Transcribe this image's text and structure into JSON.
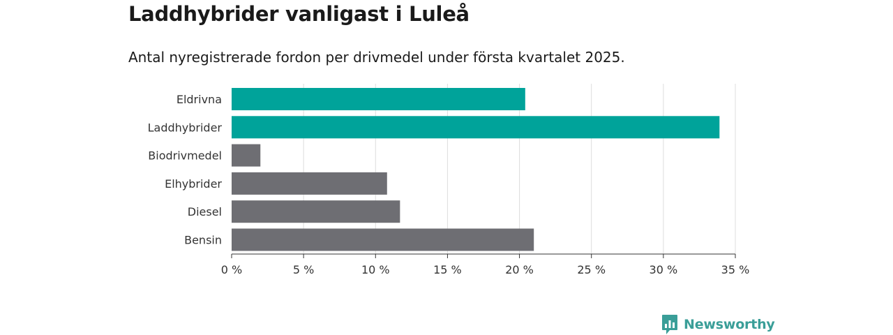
{
  "title": "Laddhybrider vanligast i Luleå",
  "subtitle": "Antal nyregistrerade fordon per drivmedel under första kvartalet 2025.",
  "brand": {
    "name": "Newsworthy",
    "color": "#3a9e98"
  },
  "colors": {
    "highlight": "#00a39a",
    "default": "#6e6e73",
    "grid": "#dddddd",
    "axis": "#333333"
  },
  "chart_data": {
    "type": "bar",
    "orientation": "horizontal",
    "categories": [
      "Eldrivna",
      "Laddhybrider",
      "Biodrivmedel",
      "Elhybrider",
      "Diesel",
      "Bensin"
    ],
    "values": [
      20.4,
      33.9,
      2.0,
      10.8,
      11.7,
      21.0
    ],
    "highlight": [
      true,
      true,
      false,
      false,
      false,
      false
    ],
    "unit": "%",
    "xlim": [
      0,
      35
    ],
    "ticks": [
      0,
      5,
      10,
      15,
      20,
      25,
      30,
      35
    ],
    "tick_labels": [
      "0 %",
      "5 %",
      "10 %",
      "15 %",
      "20 %",
      "25 %",
      "30 %",
      "35 %"
    ],
    "grid": true
  }
}
